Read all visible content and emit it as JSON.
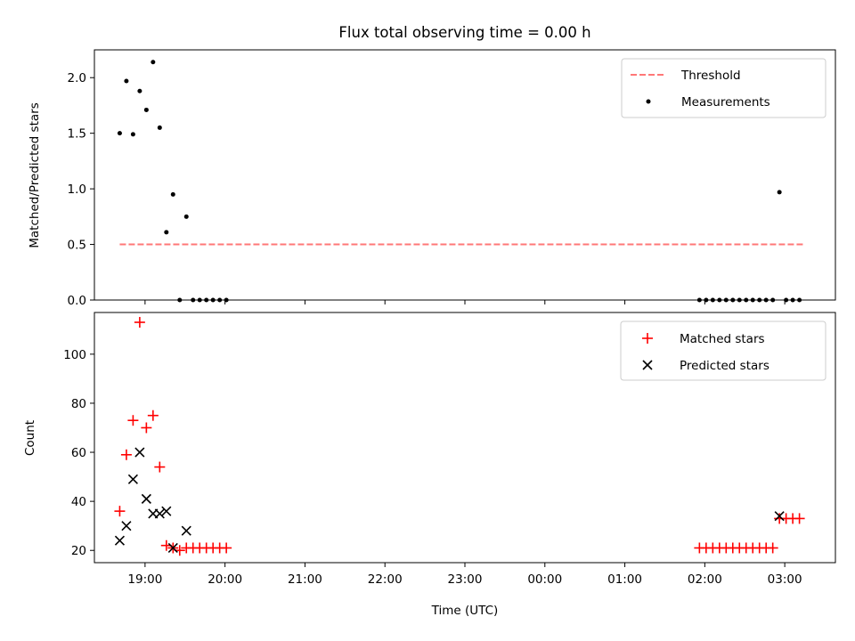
{
  "chart_data": {
    "title": "Flux total observing time = 0.00 h",
    "xlabel": "Time (UTC)",
    "x_tick_labels": [
      "19:00",
      "20:00",
      "21:00",
      "22:00",
      "23:00",
      "00:00",
      "01:00",
      "02:00",
      "03:00"
    ],
    "panels": [
      {
        "type": "scatter",
        "ylabel": "Matched/Predicted stars",
        "ylim": [
          0.0,
          2.25
        ],
        "y_ticks": [
          "0.0",
          "0.5",
          "1.0",
          "1.5",
          "2.0"
        ],
        "legend_position": "top-right",
        "threshold": {
          "name": "Threshold",
          "value": 0.5,
          "x_start": "18:41",
          "x_end": "03:14",
          "color": "#ff7777"
        },
        "series": [
          {
            "name": "Measurements",
            "color": "#000000",
            "marker": "dot",
            "points": [
              [
                "18:41",
                1.5
              ],
              [
                "18:46",
                1.97
              ],
              [
                "18:51",
                1.49
              ],
              [
                "18:56",
                1.88
              ],
              [
                "19:01",
                1.71
              ],
              [
                "19:06",
                2.14
              ],
              [
                "19:11",
                1.55
              ],
              [
                "19:16",
                0.61
              ],
              [
                "19:21",
                0.95
              ],
              [
                "19:26",
                0.0
              ],
              [
                "19:31",
                0.75
              ],
              [
                "19:36",
                0.0
              ],
              [
                "19:41",
                0.0
              ],
              [
                "19:46",
                0.0
              ],
              [
                "19:51",
                0.0
              ],
              [
                "19:56",
                0.0
              ],
              [
                "20:01",
                0.0
              ],
              [
                "01:56",
                0.0
              ],
              [
                "02:01",
                0.0
              ],
              [
                "02:06",
                0.0
              ],
              [
                "02:11",
                0.0
              ],
              [
                "02:16",
                0.0
              ],
              [
                "02:21",
                0.0
              ],
              [
                "02:26",
                0.0
              ],
              [
                "02:31",
                0.0
              ],
              [
                "02:36",
                0.0
              ],
              [
                "02:41",
                0.0
              ],
              [
                "02:46",
                0.0
              ],
              [
                "02:51",
                0.0
              ],
              [
                "02:56",
                0.97
              ],
              [
                "03:01",
                0.0
              ],
              [
                "03:06",
                0.0
              ],
              [
                "03:11",
                0.0
              ]
            ]
          }
        ]
      },
      {
        "type": "scatter",
        "ylabel": "Count",
        "ylim": [
          15,
          117
        ],
        "y_ticks": [
          "20",
          "40",
          "60",
          "80",
          "100"
        ],
        "legend_position": "top-right",
        "series": [
          {
            "name": "Matched stars",
            "color": "#ff0000",
            "marker": "plus",
            "points": [
              [
                "18:41",
                36
              ],
              [
                "18:46",
                59
              ],
              [
                "18:51",
                73
              ],
              [
                "18:56",
                113
              ],
              [
                "19:01",
                70
              ],
              [
                "19:06",
                75
              ],
              [
                "19:11",
                54
              ],
              [
                "19:16",
                22
              ],
              [
                "19:21",
                21
              ],
              [
                "19:26",
                20
              ],
              [
                "19:31",
                21
              ],
              [
                "19:36",
                21
              ],
              [
                "19:41",
                21
              ],
              [
                "19:46",
                21
              ],
              [
                "19:51",
                21
              ],
              [
                "19:56",
                21
              ],
              [
                "20:01",
                21
              ],
              [
                "01:56",
                21
              ],
              [
                "02:01",
                21
              ],
              [
                "02:06",
                21
              ],
              [
                "02:11",
                21
              ],
              [
                "02:16",
                21
              ],
              [
                "02:21",
                21
              ],
              [
                "02:26",
                21
              ],
              [
                "02:31",
                21
              ],
              [
                "02:36",
                21
              ],
              [
                "02:41",
                21
              ],
              [
                "02:46",
                21
              ],
              [
                "02:51",
                21
              ],
              [
                "02:56",
                33
              ],
              [
                "03:01",
                33
              ],
              [
                "03:06",
                33
              ],
              [
                "03:11",
                33
              ]
            ]
          },
          {
            "name": "Predicted stars",
            "color": "#000000",
            "marker": "x",
            "points": [
              [
                "18:41",
                24
              ],
              [
                "18:46",
                30
              ],
              [
                "18:51",
                49
              ],
              [
                "18:56",
                60
              ],
              [
                "19:01",
                41
              ],
              [
                "19:06",
                35
              ],
              [
                "19:11",
                35
              ],
              [
                "19:16",
                36
              ],
              [
                "19:21",
                21
              ],
              [
                "19:31",
                28
              ],
              [
                "02:56",
                34
              ]
            ]
          }
        ]
      }
    ]
  }
}
